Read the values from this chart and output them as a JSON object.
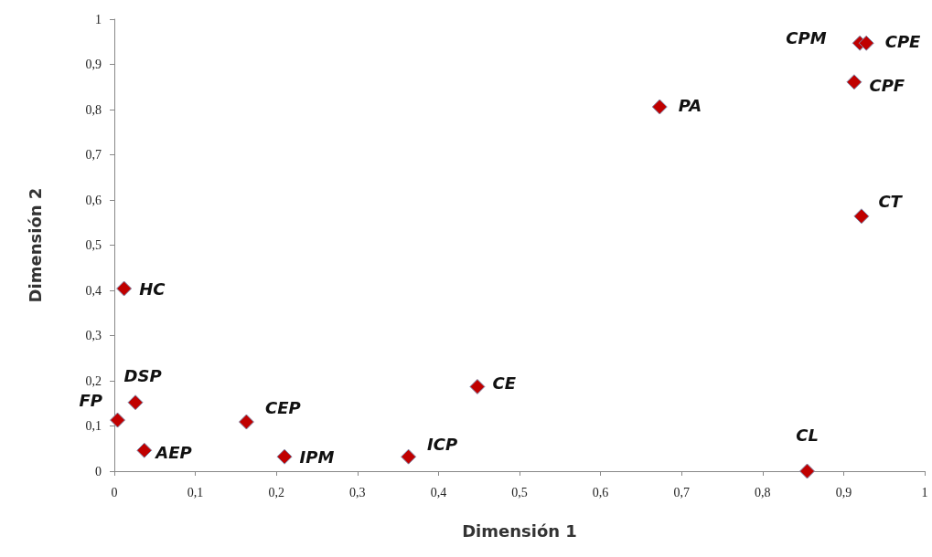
{
  "chart_data": {
    "type": "scatter",
    "xlabel": "Dimensión 1",
    "ylabel": "Dimensión 2",
    "x": [
      0.012,
      0.026,
      0.004,
      0.037,
      0.163,
      0.21,
      0.363,
      0.448,
      0.673,
      0.92,
      0.928,
      0.913,
      0.922,
      0.855
    ],
    "values": [
      0.404,
      0.152,
      0.113,
      0.046,
      0.109,
      0.032,
      0.032,
      0.187,
      0.806,
      0.947,
      0.947,
      0.861,
      0.564,
      0
    ],
    "value_labels": [
      "HC",
      "DSP",
      "FP",
      "AEP",
      "CEP",
      "IPM",
      "ICP",
      "CE",
      "PA",
      "CPM",
      "CPE",
      "CPF",
      "CT",
      "CL"
    ],
    "color": "#c00000",
    "marker": "diamond",
    "grid": false,
    "xlim": [
      0,
      1
    ],
    "ylim": [
      0,
      1
    ],
    "xticks": [
      0,
      {
        "value": 0.1,
        "label": "0,1"
      },
      {
        "value": 0.2,
        "label": "0,2"
      },
      {
        "value": 0.3,
        "label": "0,3"
      },
      {
        "value": 0.4,
        "label": "0,4"
      },
      {
        "value": 0.5,
        "label": "0,5"
      },
      {
        "value": 0.6,
        "label": "0,6"
      },
      {
        "value": 0.7,
        "label": "0,7"
      },
      {
        "value": 0.8,
        "label": "0,8"
      },
      {
        "value": 0.9,
        "label": "0,9"
      },
      1
    ],
    "yticks": [
      0,
      {
        "value": 0.1,
        "label": "0,1"
      },
      {
        "value": 0.2,
        "label": "0,2"
      },
      {
        "value": 0.3,
        "label": "0,3"
      },
      {
        "value": 0.4,
        "label": "0,4"
      },
      {
        "value": 0.5,
        "label": "0,5"
      },
      {
        "value": 0.6,
        "label": "0,6"
      },
      {
        "value": 0.7,
        "label": "0,7"
      },
      {
        "value": 0.8,
        "label": "0,8"
      },
      {
        "value": 0.9,
        "label": "0,9"
      },
      1
    ]
  }
}
